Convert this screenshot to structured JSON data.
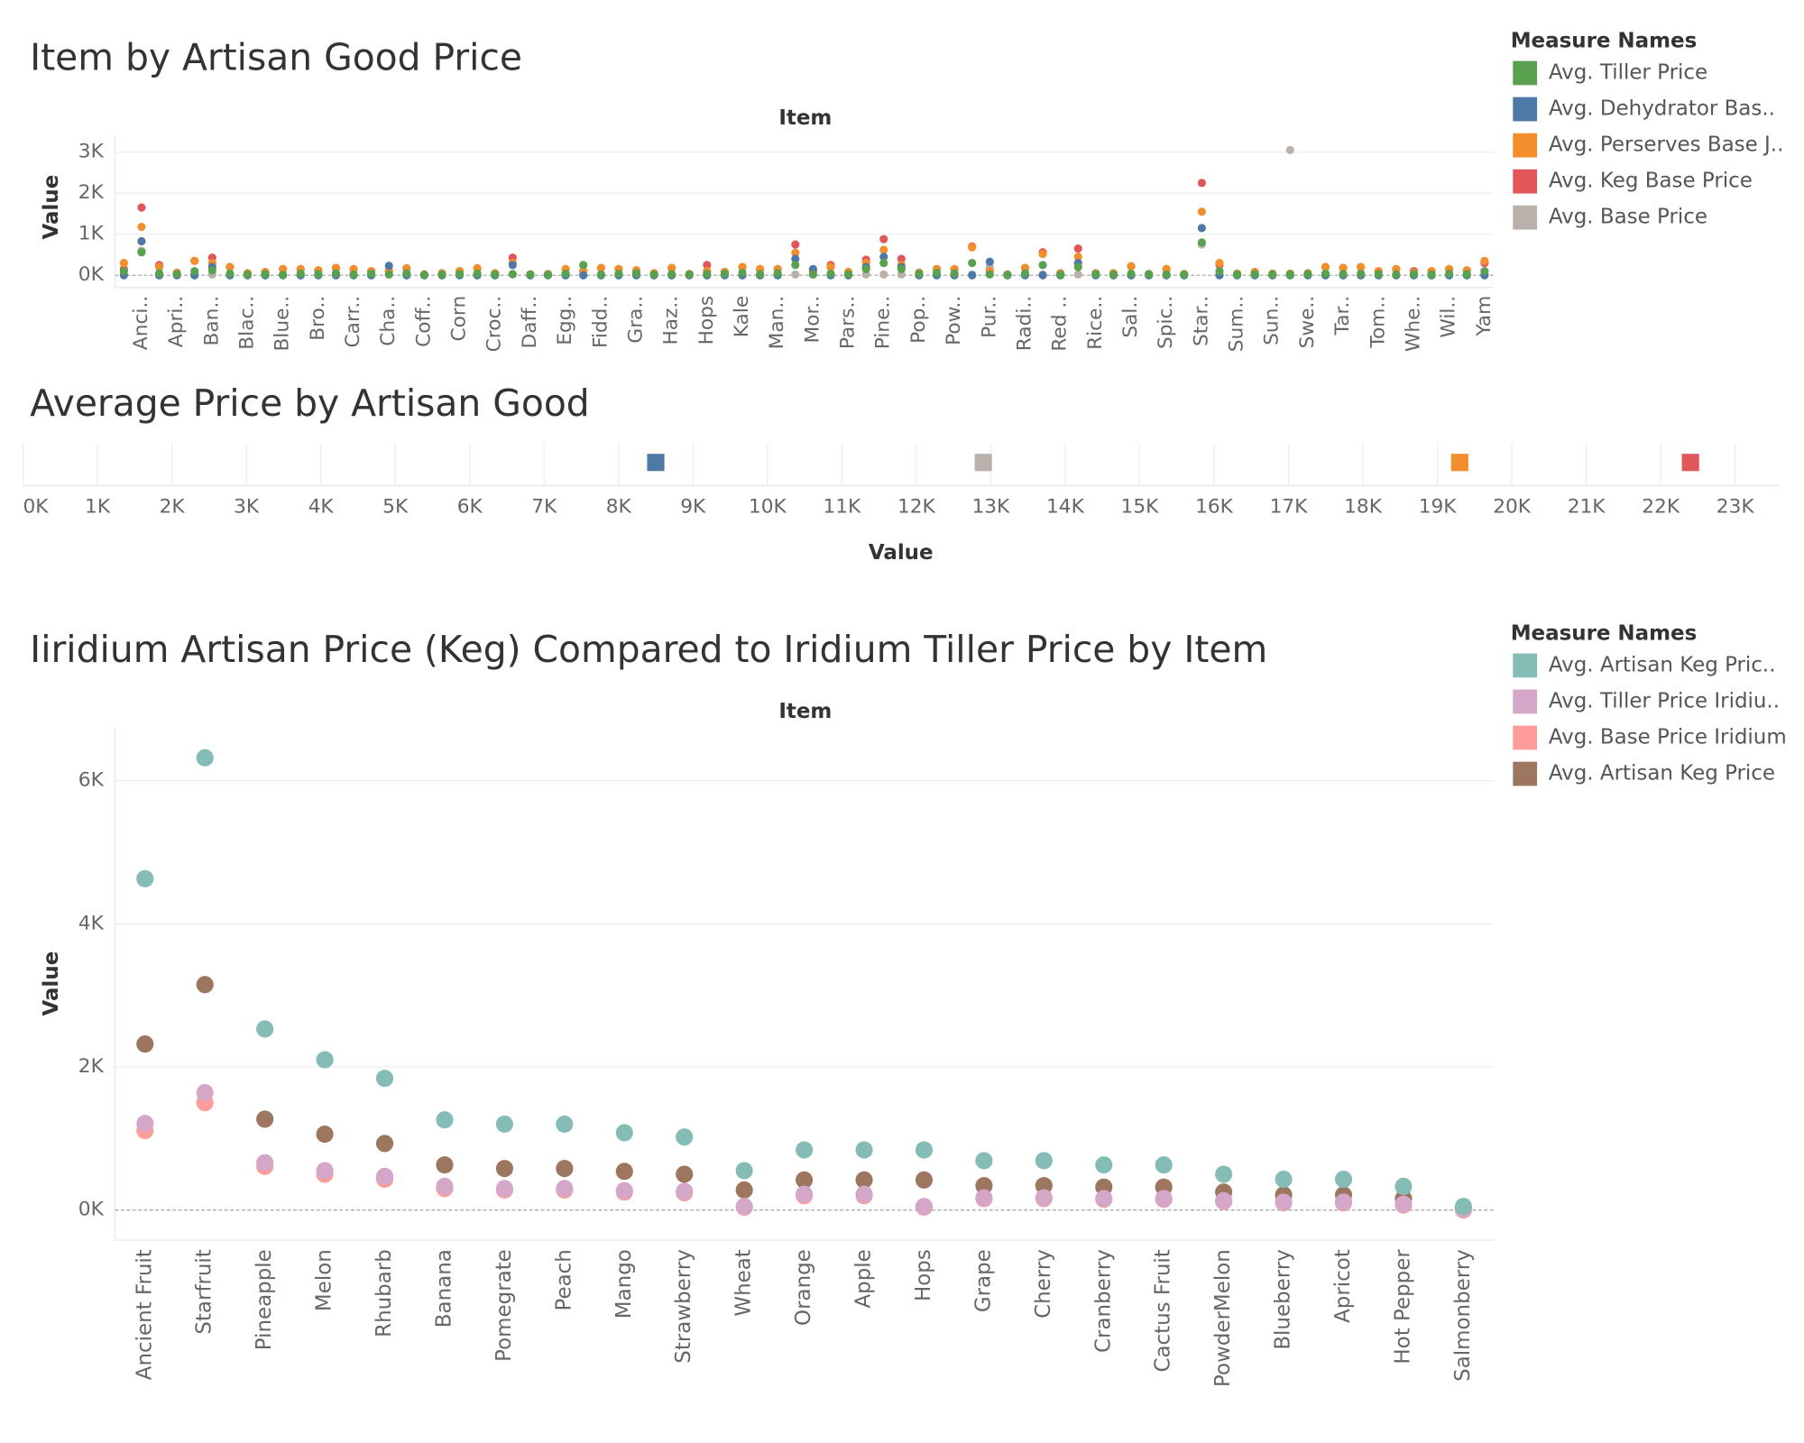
{
  "chart_data": [
    {
      "type": "dot",
      "title": "Item by Artisan Good Price",
      "x_header": "Item",
      "ylabel": "Value",
      "legend_title": "Measure Names",
      "legend": "top-right",
      "categories": [
        null,
        "Anci..",
        null,
        "Apri..",
        null,
        "Ban..",
        null,
        "Blac..",
        null,
        "Blue..",
        null,
        "Bro..",
        null,
        "Carr..",
        null,
        "Cha..",
        null,
        "Coff..",
        null,
        "Corn",
        null,
        "Croc..",
        null,
        "Daff..",
        null,
        "Egg..",
        null,
        "Fidd..",
        null,
        "Gra..",
        null,
        "Haz..",
        null,
        "Hops",
        null,
        "Kale",
        null,
        "Man..",
        null,
        "Mor..",
        null,
        "Pars..",
        null,
        "Pine..",
        null,
        "Pop..",
        null,
        "Pow..",
        null,
        "Pur..",
        null,
        "Radi..",
        null,
        "Red ..",
        null,
        "Rice..",
        null,
        "Sal..",
        null,
        "Spic..",
        null,
        "Star..",
        null,
        "Sum..",
        null,
        "Sun..",
        null,
        "Swe..",
        null,
        "Tar..",
        null,
        "Tom..",
        null,
        "Whe..",
        null,
        "Wil..",
        null,
        "Yam"
      ],
      "series": [
        {
          "name": "Avg. Tiller Price",
          "color": "#59a14f",
          "values": [
            100,
            560,
            50,
            30,
            100,
            120,
            40,
            20,
            30,
            10,
            40,
            30,
            50,
            20,
            40,
            20,
            50,
            10,
            20,
            30,
            40,
            20,
            30,
            20,
            10,
            40,
            250,
            20,
            40,
            50,
            20,
            30,
            20,
            30,
            40,
            60,
            30,
            50,
            250,
            20,
            40,
            20,
            150,
            300,
            150,
            40,
            60,
            50,
            300,
            20,
            10,
            50,
            250,
            20,
            200,
            30,
            20,
            40,
            30,
            20,
            20,
            800,
            100,
            20,
            30,
            20,
            20,
            30,
            40,
            30,
            40,
            30,
            20,
            30,
            20,
            40,
            30,
            100
          ]
        },
        {
          "name": "Avg. Dehydrator Bas..",
          "color": "#4e79a7",
          "values": [
            0,
            830,
            0,
            0,
            0,
            200,
            0,
            0,
            0,
            0,
            0,
            0,
            0,
            0,
            0,
            230,
            0,
            0,
            0,
            0,
            0,
            0,
            250,
            0,
            0,
            0,
            0,
            0,
            0,
            0,
            0,
            0,
            0,
            0,
            0,
            0,
            0,
            0,
            400,
            150,
            0,
            0,
            200,
            450,
            200,
            0,
            0,
            0,
            0,
            330,
            0,
            0,
            0,
            0,
            300,
            0,
            0,
            0,
            0,
            0,
            0,
            1150,
            0,
            0,
            0,
            0,
            0,
            0,
            0,
            0,
            0,
            0,
            0,
            0,
            0,
            0,
            0,
            0
          ]
        },
        {
          "name": "Avg. Perserves Base J..",
          "color": "#f28e2b",
          "values": [
            300,
            1180,
            200,
            60,
            350,
            300,
            200,
            50,
            80,
            150,
            150,
            120,
            180,
            150,
            100,
            100,
            170,
            20,
            50,
            100,
            170,
            50,
            300,
            20,
            30,
            150,
            100,
            180,
            150,
            120,
            50,
            180,
            30,
            100,
            80,
            200,
            150,
            150,
            550,
            100,
            200,
            80,
            300,
            620,
            250,
            60,
            150,
            150,
            680,
            100,
            20,
            180,
            520,
            50,
            450,
            50,
            50,
            220,
            30,
            150,
            30,
            1550,
            300,
            40,
            80,
            40,
            40,
            50,
            200,
            180,
            200,
            100,
            150,
            60,
            100,
            150,
            120,
            350
          ]
        },
        {
          "name": "Avg. Keg Base Price",
          "color": "#e15759",
          "values": [
            150,
            1650,
            250,
            60,
            350,
            430,
            200,
            50,
            80,
            150,
            150,
            120,
            180,
            150,
            100,
            100,
            170,
            20,
            50,
            100,
            170,
            50,
            430,
            20,
            30,
            150,
            100,
            180,
            150,
            120,
            50,
            180,
            30,
            250,
            80,
            200,
            150,
            150,
            750,
            100,
            250,
            80,
            380,
            880,
            400,
            60,
            150,
            150,
            700,
            100,
            20,
            180,
            560,
            50,
            650,
            50,
            50,
            220,
            30,
            150,
            30,
            2250,
            250,
            40,
            80,
            40,
            40,
            50,
            200,
            180,
            200,
            100,
            150,
            100,
            100,
            150,
            120,
            300
          ]
        },
        {
          "name": "Avg. Base Price",
          "color": "#bab0ac",
          "values": [
            20,
            600,
            20,
            20,
            20,
            20,
            20,
            20,
            20,
            20,
            20,
            20,
            20,
            20,
            20,
            20,
            20,
            20,
            20,
            20,
            20,
            20,
            20,
            20,
            20,
            20,
            20,
            20,
            20,
            20,
            20,
            20,
            20,
            20,
            20,
            20,
            20,
            20,
            20,
            20,
            20,
            20,
            20,
            20,
            20,
            20,
            20,
            20,
            20,
            200,
            20,
            20,
            20,
            20,
            20,
            20,
            20,
            20,
            20,
            20,
            20,
            750,
            20,
            20,
            20,
            20,
            3050,
            20,
            20,
            20,
            20,
            20,
            20,
            20,
            20,
            20,
            20,
            20
          ]
        }
      ],
      "ylim": [
        -300,
        3400
      ],
      "yticks": [
        {
          "value": 0,
          "label": "0K"
        },
        {
          "value": 1000,
          "label": "1K"
        },
        {
          "value": 2000,
          "label": "2K"
        },
        {
          "value": 3000,
          "label": "3K"
        }
      ],
      "grid": true
    },
    {
      "type": "strip",
      "title": "Average Price by Artisan Good",
      "xlabel": "Value",
      "values": [
        8500,
        12900,
        19300,
        22400
      ],
      "colors": [
        "#4e79a7",
        "#bab0ac",
        "#f28e2b",
        "#e15759"
      ],
      "xlim": [
        0,
        23600
      ],
      "xticks": [
        {
          "value": 0,
          "label": "0K"
        },
        {
          "value": 1000,
          "label": "1K"
        },
        {
          "value": 2000,
          "label": "2K"
        },
        {
          "value": 3000,
          "label": "3K"
        },
        {
          "value": 4000,
          "label": "4K"
        },
        {
          "value": 5000,
          "label": "5K"
        },
        {
          "value": 6000,
          "label": "6K"
        },
        {
          "value": 7000,
          "label": "7K"
        },
        {
          "value": 8000,
          "label": "8K"
        },
        {
          "value": 9000,
          "label": "9K"
        },
        {
          "value": 10000,
          "label": "10K"
        },
        {
          "value": 11000,
          "label": "11K"
        },
        {
          "value": 12000,
          "label": "12K"
        },
        {
          "value": 13000,
          "label": "13K"
        },
        {
          "value": 14000,
          "label": "14K"
        },
        {
          "value": 15000,
          "label": "15K"
        },
        {
          "value": 16000,
          "label": "16K"
        },
        {
          "value": 17000,
          "label": "17K"
        },
        {
          "value": 18000,
          "label": "18K"
        },
        {
          "value": 19000,
          "label": "19K"
        },
        {
          "value": 20000,
          "label": "20K"
        },
        {
          "value": 21000,
          "label": "21K"
        },
        {
          "value": 22000,
          "label": "22K"
        },
        {
          "value": 23000,
          "label": "23K"
        }
      ],
      "grid": true
    },
    {
      "type": "dot",
      "title": "Iiridium Artisan Price (Keg) Compared to Iridium Tiller Price by Item",
      "x_header": "Item",
      "ylabel": "Value",
      "legend_title": "Measure Names",
      "legend": "top-right",
      "categories": [
        "Ancient Fruit",
        "Starfruit",
        "Pineapple",
        "Melon",
        "Rhubarb",
        "Banana",
        "Pomegrate",
        "Peach",
        "Mango",
        "Strawberry",
        "Wheat",
        "Orange",
        "Apple",
        "Hops",
        "Grape",
        "Cherry",
        "Cranberry",
        "Cactus Fruit",
        "PowderMelon",
        "Blueberry",
        "Apricot",
        "Hot Pepper",
        "Salmonberry"
      ],
      "series": [
        {
          "name": "Avg. Artisan Keg Pric..",
          "color": "#86bcb6",
          "values": [
            4630,
            6320,
            2530,
            2100,
            1840,
            1260,
            1200,
            1200,
            1080,
            1020,
            550,
            840,
            840,
            840,
            690,
            690,
            630,
            630,
            500,
            430,
            430,
            330,
            50
          ]
        },
        {
          "name": "Avg. Tiller Price Iridiu..",
          "color": "#d4a6c8",
          "values": [
            1210,
            1640,
            660,
            550,
            470,
            330,
            300,
            300,
            270,
            260,
            50,
            220,
            220,
            50,
            170,
            170,
            160,
            160,
            130,
            110,
            110,
            80,
            10
          ]
        },
        {
          "name": "Avg. Base Price Iridium",
          "color": "#ff9d9a",
          "values": [
            1110,
            1500,
            610,
            500,
            430,
            300,
            280,
            280,
            250,
            240,
            40,
            200,
            200,
            40,
            160,
            160,
            150,
            150,
            120,
            100,
            100,
            70,
            0
          ]
        },
        {
          "name": "Avg. Artisan Keg Price",
          "color": "#9d7660",
          "values": [
            2320,
            3150,
            1270,
            1060,
            930,
            630,
            580,
            580,
            540,
            500,
            280,
            420,
            420,
            420,
            340,
            340,
            320,
            320,
            250,
            210,
            210,
            160,
            20
          ]
        }
      ],
      "ylim": [
        -420,
        6750
      ],
      "yticks": [
        {
          "value": 0,
          "label": "0K"
        },
        {
          "value": 2000,
          "label": "2K"
        },
        {
          "value": 4000,
          "label": "4K"
        },
        {
          "value": 6000,
          "label": "6K"
        }
      ],
      "grid": true
    }
  ]
}
